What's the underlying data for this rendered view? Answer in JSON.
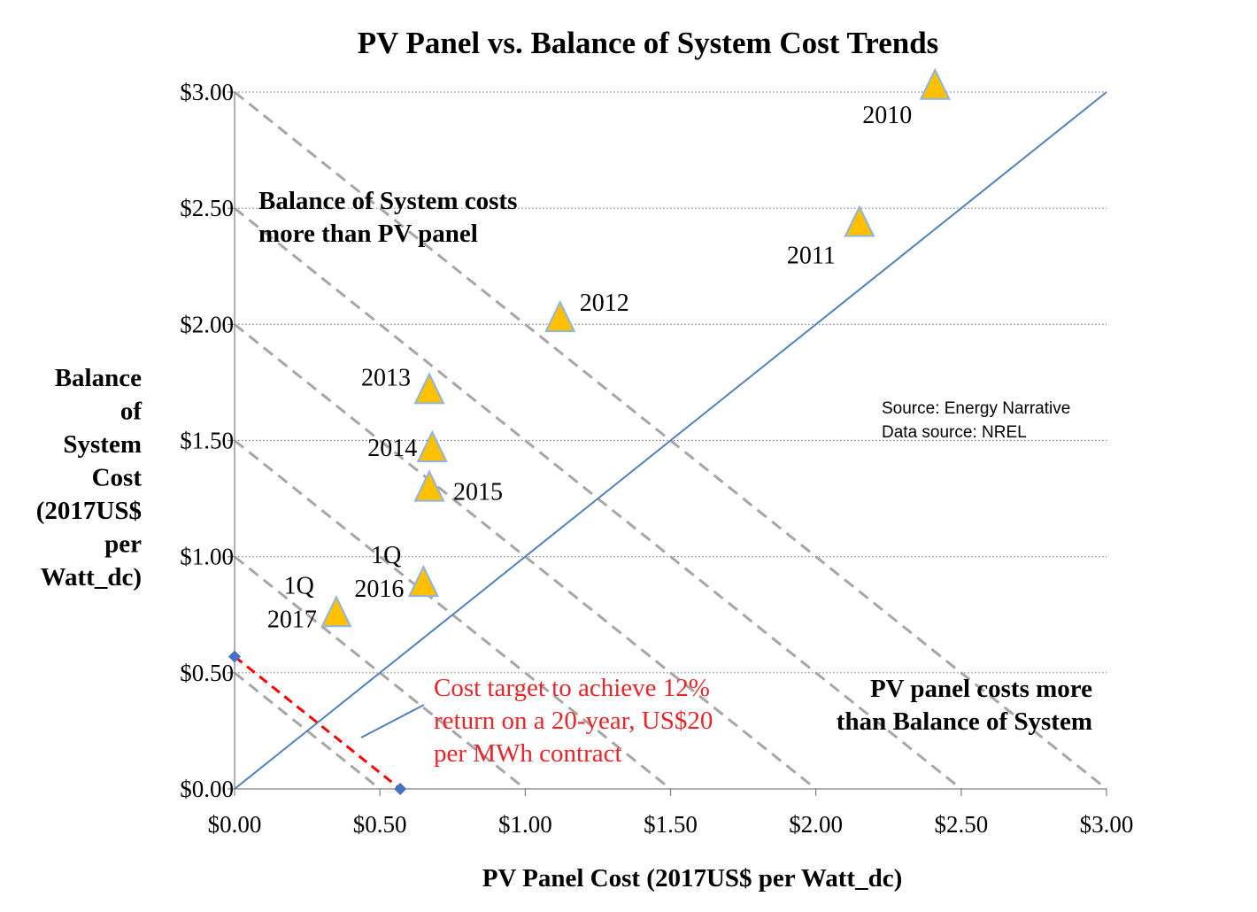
{
  "chart_data": {
    "type": "scatter",
    "title": "PV Panel vs. Balance of System Cost Trends",
    "xlabel": "PV Panel Cost (2017US$ per Watt_dc)",
    "ylabel_lines": [
      "Balance",
      "of",
      "System",
      "Cost",
      "(2017US$",
      "per",
      "Watt_dc)"
    ],
    "xlim": [
      0,
      3
    ],
    "ylim": [
      0,
      3
    ],
    "x_ticks": [
      0,
      0.5,
      1,
      1.5,
      2,
      2.5,
      3
    ],
    "y_ticks": [
      0,
      0.5,
      1,
      1.5,
      2,
      2.5,
      3
    ],
    "x_tick_labels": [
      "$0.00",
      "$0.50",
      "$1.00",
      "$1.50",
      "$2.00",
      "$2.50",
      "$3.00"
    ],
    "y_tick_labels": [
      "$0.00",
      "$0.50",
      "$1.00",
      "$1.50",
      "$2.00",
      "$2.50",
      "$3.00"
    ],
    "grid": "horizontal dotted",
    "points": [
      {
        "label_lines": [
          "2010"
        ],
        "x": 2.41,
        "y": 3.02
      },
      {
        "label_lines": [
          "2011"
        ],
        "x": 2.15,
        "y": 2.43
      },
      {
        "label_lines": [
          "2012"
        ],
        "x": 1.12,
        "y": 2.02
      },
      {
        "label_lines": [
          "2013"
        ],
        "x": 0.67,
        "y": 1.71
      },
      {
        "label_lines": [
          "2014"
        ],
        "x": 0.68,
        "y": 1.46
      },
      {
        "label_lines": [
          "2015"
        ],
        "x": 0.67,
        "y": 1.29
      },
      {
        "label_lines": [
          "1Q",
          "2016"
        ],
        "x": 0.65,
        "y": 0.88
      },
      {
        "label_lines": [
          "1Q",
          "2017"
        ],
        "x": 0.35,
        "y": 0.75
      }
    ],
    "equal_cost_line": {
      "from": [
        0,
        0
      ],
      "to": [
        3,
        3
      ]
    },
    "iso_total_cost_lines": [
      0.5,
      1,
      1.5,
      2,
      2.5,
      3
    ],
    "target_line": {
      "from": [
        0,
        0.57
      ],
      "to": [
        0.57,
        0
      ]
    },
    "annotations": {
      "upper_region": [
        "Balance of System costs",
        "more than PV panel"
      ],
      "lower_region": [
        "PV panel costs more",
        "than Balance of System"
      ],
      "target": [
        "Cost target to achieve 12%",
        "return on a 20-year, US$20",
        "per MWh contract"
      ],
      "source": [
        "Source: Energy Narrative",
        "Data source: NREL"
      ]
    },
    "colors": {
      "marker_fill": "#FFC000",
      "marker_stroke": "#8DB4E2",
      "equal_line": "#4F81BD",
      "iso_lines": "#A6A6A6",
      "target_line": "#FF0000",
      "target_text": "#E8262A",
      "endpoint_marker": "#4472C4",
      "grid": "#808080",
      "text": "#000000"
    }
  }
}
